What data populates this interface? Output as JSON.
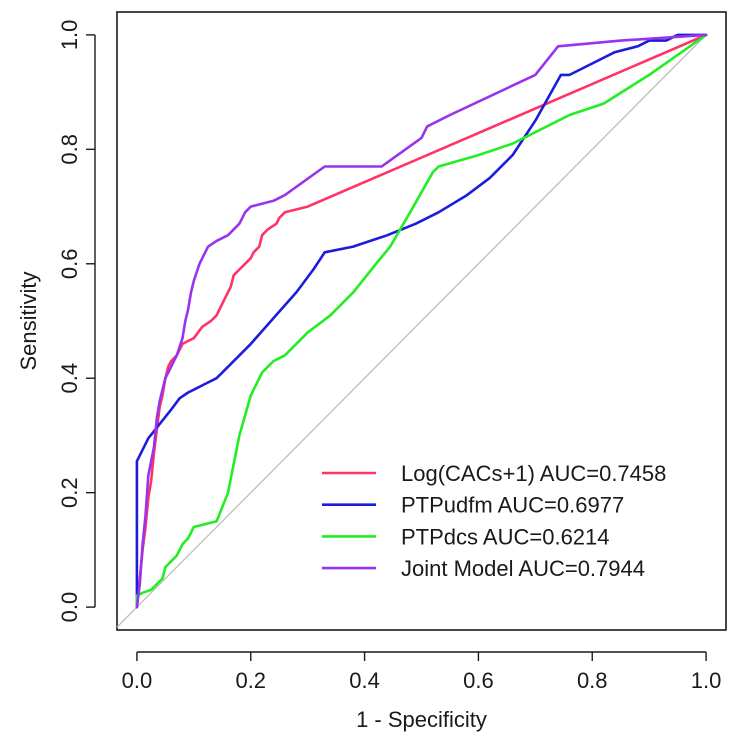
{
  "chart_data": {
    "type": "line",
    "title": "",
    "xlabel": "1 - Specificity",
    "ylabel": "Sensitivity",
    "xlim": [
      -0.035,
      1.035
    ],
    "ylim": [
      -0.04,
      1.04
    ],
    "xticks": [
      0.0,
      0.2,
      0.4,
      0.6,
      0.8,
      1.0
    ],
    "xtick_labels": [
      "0.0",
      "0.2",
      "0.4",
      "0.6",
      "0.8",
      "1.0"
    ],
    "yticks": [
      0.0,
      0.2,
      0.4,
      0.6,
      0.8,
      1.0
    ],
    "ytick_labels": [
      "0.0",
      "0.2",
      "0.4",
      "0.6",
      "0.8",
      "1.0"
    ],
    "grid": false,
    "legend_position": "bottom-right",
    "reference_line": {
      "x": [
        -0.035,
        1.0
      ],
      "y": [
        -0.035,
        1.0
      ],
      "color": "#bebebe"
    },
    "series": [
      {
        "name": "Log(CACs+1)",
        "legend_label": "Log(CACs+1)  AUC=0.7458",
        "auc": 0.7458,
        "color": "#ff3366",
        "x": [
          0,
          0.005,
          0.01,
          0.015,
          0.02,
          0.025,
          0.03,
          0.035,
          0.04,
          0.045,
          0.05,
          0.055,
          0.06,
          0.07,
          0.08,
          0.09,
          0.1,
          0.115,
          0.13,
          0.14,
          0.145,
          0.155,
          0.165,
          0.17,
          0.18,
          0.19,
          0.2,
          0.205,
          0.215,
          0.22,
          0.23,
          0.245,
          0.25,
          0.26,
          0.3,
          1.0
        ],
        "y": [
          0,
          0.05,
          0.1,
          0.14,
          0.19,
          0.22,
          0.27,
          0.31,
          0.35,
          0.37,
          0.4,
          0.42,
          0.43,
          0.44,
          0.46,
          0.465,
          0.47,
          0.49,
          0.5,
          0.51,
          0.52,
          0.54,
          0.56,
          0.58,
          0.59,
          0.6,
          0.61,
          0.62,
          0.63,
          0.65,
          0.66,
          0.67,
          0.68,
          0.69,
          0.7,
          1.0
        ]
      },
      {
        "name": "PTPudfm",
        "legend_label": "PTPudfm  AUC=0.6977",
        "auc": 0.6977,
        "color": "#1c1cdc",
        "x": [
          0,
          0.0,
          0.01,
          0.02,
          0.04,
          0.06,
          0.075,
          0.09,
          0.1,
          0.12,
          0.14,
          0.16,
          0.2,
          0.24,
          0.28,
          0.31,
          0.33,
          0.38,
          0.41,
          0.44,
          0.49,
          0.53,
          0.58,
          0.62,
          0.66,
          0.7,
          0.745,
          0.76,
          0.8,
          0.84,
          0.88,
          0.9,
          0.93,
          0.95,
          0.98,
          1.0
        ],
        "y": [
          0,
          0.255,
          0.275,
          0.295,
          0.32,
          0.345,
          0.365,
          0.375,
          0.38,
          0.39,
          0.4,
          0.42,
          0.46,
          0.505,
          0.55,
          0.59,
          0.62,
          0.63,
          0.64,
          0.65,
          0.67,
          0.69,
          0.72,
          0.75,
          0.79,
          0.85,
          0.93,
          0.93,
          0.95,
          0.97,
          0.98,
          0.99,
          0.99,
          1.0,
          1.0,
          1.0
        ]
      },
      {
        "name": "PTPdcs",
        "legend_label": "PTPdcs  AUC=0.6214",
        "auc": 0.6214,
        "color": "#22ee22",
        "x": [
          0,
          0.0,
          0.01,
          0.025,
          0.035,
          0.045,
          0.05,
          0.06,
          0.07,
          0.08,
          0.09,
          0.1,
          0.12,
          0.14,
          0.16,
          0.18,
          0.2,
          0.22,
          0.24,
          0.26,
          0.28,
          0.3,
          0.34,
          0.38,
          0.42,
          0.445,
          0.48,
          0.52,
          0.53,
          0.6,
          0.66,
          0.7,
          0.76,
          0.82,
          0.9,
          1.0
        ],
        "y": [
          0,
          0.02,
          0.025,
          0.03,
          0.04,
          0.05,
          0.07,
          0.08,
          0.09,
          0.11,
          0.12,
          0.14,
          0.145,
          0.15,
          0.2,
          0.3,
          0.37,
          0.41,
          0.43,
          0.44,
          0.46,
          0.48,
          0.51,
          0.55,
          0.6,
          0.63,
          0.69,
          0.76,
          0.77,
          0.79,
          0.81,
          0.83,
          0.86,
          0.88,
          0.93,
          1.0
        ]
      },
      {
        "name": "Joint Model",
        "legend_label": "Joint Model  AUC=0.7944",
        "auc": 0.7944,
        "color": "#9933ee",
        "x": [
          0,
          0.005,
          0.01,
          0.015,
          0.02,
          0.03,
          0.035,
          0.04,
          0.045,
          0.05,
          0.06,
          0.07,
          0.08,
          0.085,
          0.09,
          0.095,
          0.1,
          0.11,
          0.12,
          0.125,
          0.14,
          0.16,
          0.18,
          0.19,
          0.2,
          0.24,
          0.26,
          0.33,
          0.35,
          0.43,
          0.5,
          0.51,
          0.55,
          0.7,
          0.74,
          0.85,
          1.0
        ],
        "y": [
          0,
          0.04,
          0.11,
          0.16,
          0.23,
          0.28,
          0.33,
          0.36,
          0.38,
          0.4,
          0.42,
          0.44,
          0.47,
          0.5,
          0.52,
          0.55,
          0.57,
          0.6,
          0.62,
          0.63,
          0.64,
          0.65,
          0.67,
          0.69,
          0.7,
          0.71,
          0.72,
          0.77,
          0.77,
          0.77,
          0.82,
          0.84,
          0.86,
          0.93,
          0.98,
          0.99,
          1.0
        ]
      }
    ]
  }
}
